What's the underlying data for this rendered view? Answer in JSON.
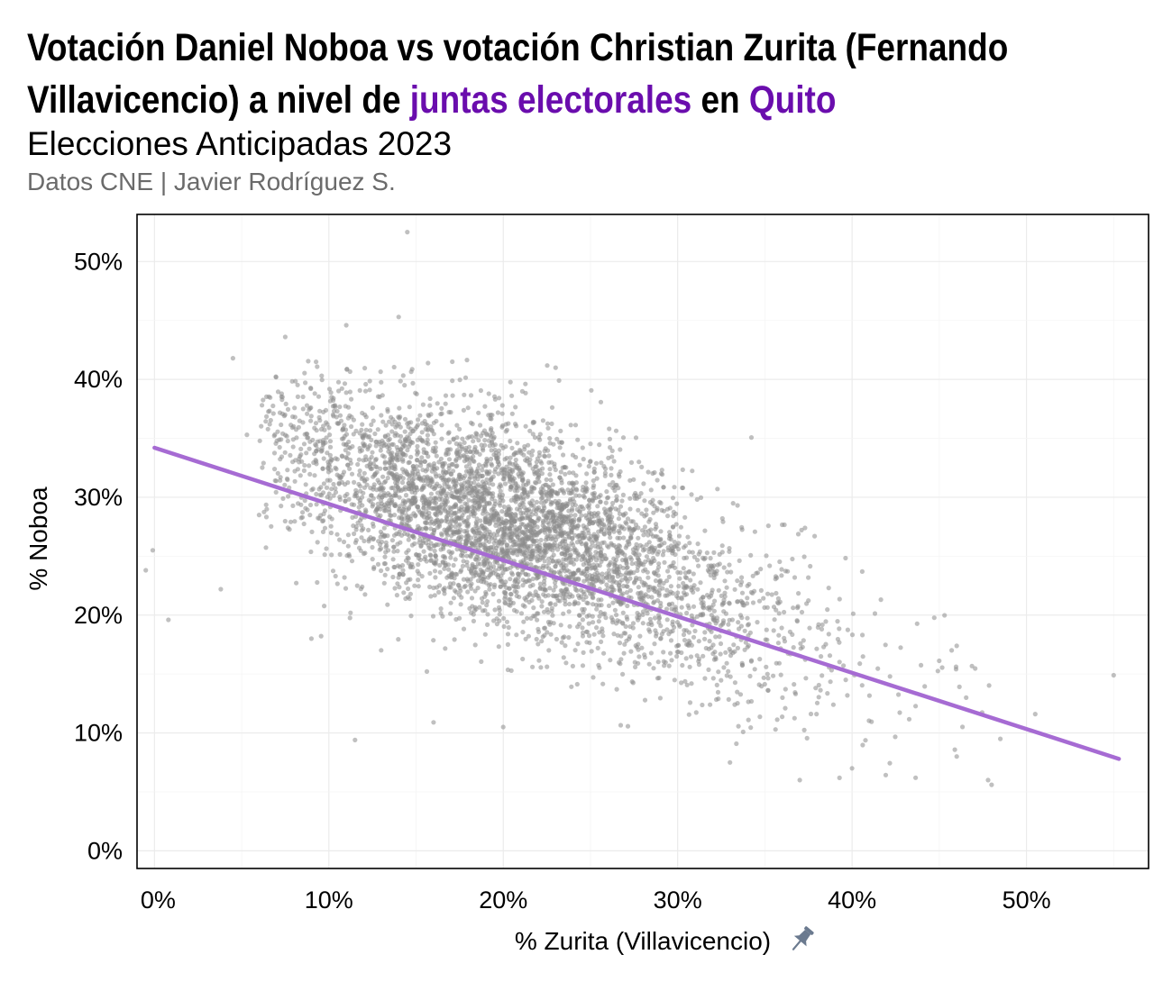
{
  "title": {
    "part1": "Votación Daniel Noboa vs votación Christian Zurita (Fernando Villavicencio) a nivel de ",
    "highlight1": "juntas electorales",
    "part2": " en ",
    "highlight2": "Quito"
  },
  "subtitle": "Elecciones Anticipadas 2023",
  "caption": "Datos CNE | Javier Rodríguez S.",
  "colors": {
    "highlight": "#6a0dad",
    "points": "#8c8c8c",
    "trend_line": "#a66bd3",
    "pin_icon": "#6b7a8f"
  },
  "chart_data": {
    "type": "scatter",
    "xlabel": "% Zurita (Villavicencio)",
    "xlabel_icon": "pin-icon",
    "ylabel": "% Noboa",
    "xlim": [
      -1,
      57
    ],
    "ylim": [
      -1.5,
      54
    ],
    "x_ticks": [
      0,
      10,
      20,
      30,
      40,
      50
    ],
    "x_tick_labels": [
      "0%",
      "10%",
      "20%",
      "30%",
      "40%",
      "50%"
    ],
    "y_ticks": [
      0,
      10,
      20,
      30,
      40,
      50
    ],
    "y_tick_labels": [
      "0%",
      "10%",
      "20%",
      "30%",
      "40%",
      "50%"
    ],
    "grid": true,
    "point_count_approx": 4500,
    "trend_line": {
      "type": "linear",
      "points": [
        [
          0,
          34.2
        ],
        [
          55.3,
          7.8
        ]
      ],
      "slope": -0.477,
      "intercept": 34.2
    },
    "outlier_points": [
      [
        14.5,
        52.5
      ],
      [
        14.0,
        45.3
      ],
      [
        11.0,
        44.6
      ],
      [
        7.5,
        43.6
      ],
      [
        4.5,
        41.8
      ],
      [
        23.0,
        41.0
      ],
      [
        -0.1,
        25.5
      ],
      [
        -0.5,
        23.8
      ],
      [
        0.8,
        19.6
      ],
      [
        3.8,
        22.2
      ],
      [
        5.3,
        35.3
      ],
      [
        6.0,
        28.5
      ],
      [
        55.0,
        14.9
      ],
      [
        50.5,
        11.6
      ],
      [
        48.0,
        5.6
      ],
      [
        47.8,
        6.0
      ],
      [
        46.0,
        8.0
      ],
      [
        48.5,
        9.5
      ],
      [
        37.0,
        6.0
      ],
      [
        33.0,
        7.5
      ],
      [
        40.0,
        7.0
      ],
      [
        11.5,
        9.4
      ],
      [
        16.0,
        10.9
      ],
      [
        20.0,
        10.5
      ],
      [
        9.0,
        18.0
      ],
      [
        37.3,
        27.4
      ],
      [
        30.3,
        30.8
      ]
    ],
    "cloud": {
      "center": [
        21,
        24.5
      ],
      "x_range": [
        6,
        48
      ],
      "y_range": [
        6,
        42
      ]
    }
  }
}
